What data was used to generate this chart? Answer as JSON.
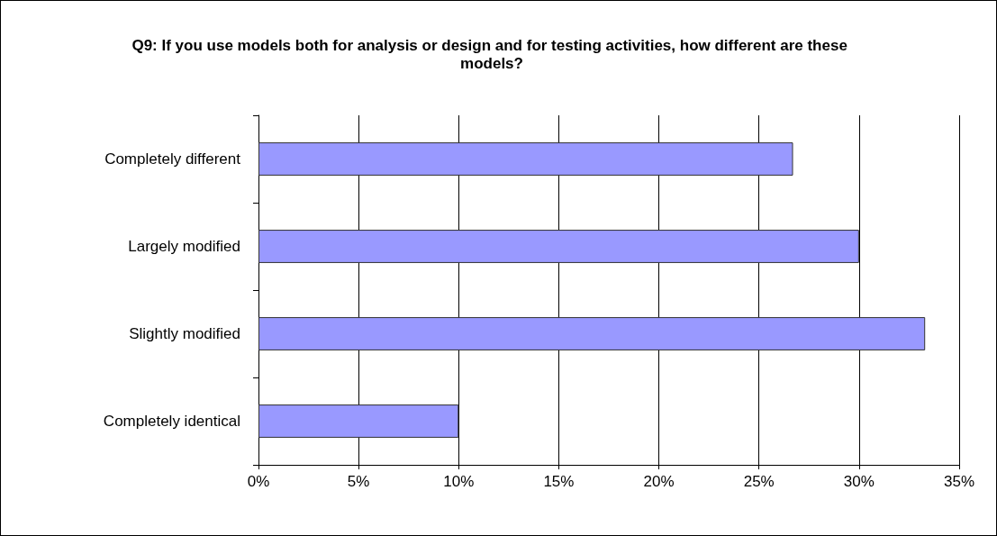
{
  "chart_data": {
    "type": "bar",
    "orientation": "horizontal",
    "title": "Q9: If you use models both for analysis or design and for testing activities, how different are these models?",
    "categories": [
      "Completely different",
      "Largely modified",
      "Slightly modified",
      "Completely identical"
    ],
    "values": [
      26.7,
      30,
      33.3,
      10
    ],
    "color": "#9999ff",
    "xlim": [
      0,
      35
    ],
    "xticks": [
      {
        "value": 0,
        "label": "0%"
      },
      {
        "value": 5,
        "label": "5%"
      },
      {
        "value": 10,
        "label": "10%"
      },
      {
        "value": 15,
        "label": "15%"
      },
      {
        "value": 20,
        "label": "20%"
      },
      {
        "value": 25,
        "label": "25%"
      },
      {
        "value": 30,
        "label": "30%"
      },
      {
        "value": 35,
        "label": "35%"
      }
    ],
    "grid": "x"
  }
}
